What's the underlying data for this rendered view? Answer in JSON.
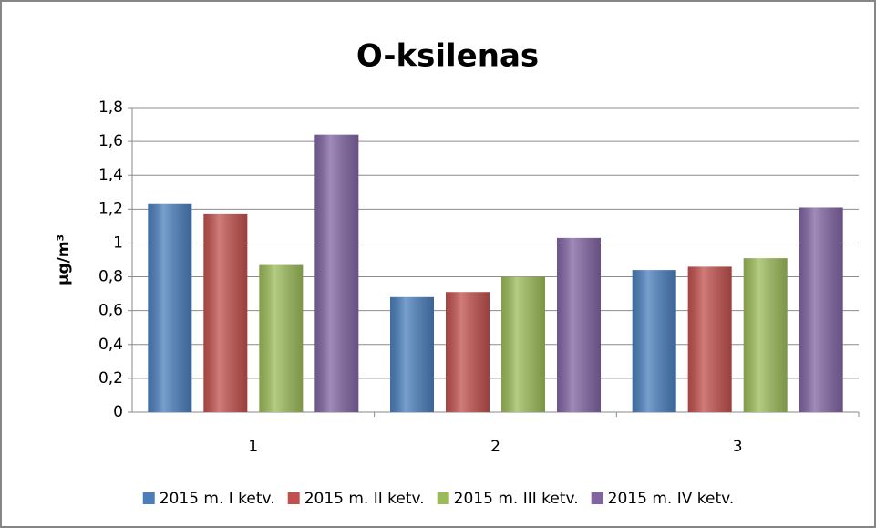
{
  "chart_data": {
    "type": "bar",
    "title": "O-ksilenas",
    "y_label": "µg/m³",
    "categories": [
      "1",
      "2",
      "3"
    ],
    "series": [
      {
        "name": "2015 m. I ketv.",
        "color": "#4a7ebb",
        "values": [
          1.23,
          0.68,
          0.84
        ]
      },
      {
        "name": "2015 m. II ketv.",
        "color": "#c0504d",
        "values": [
          1.17,
          0.71,
          0.86
        ]
      },
      {
        "name": "2015 m. III ketv.",
        "color": "#9bbb59",
        "values": [
          0.87,
          0.8,
          0.91
        ]
      },
      {
        "name": "2015 m. IV ketv.",
        "color": "#8064a2",
        "values": [
          1.64,
          1.03,
          1.21
        ]
      }
    ],
    "ylim": [
      0,
      1.8
    ],
    "yticks": [
      0,
      {
        "value": 0.2,
        "label": "0,2"
      },
      {
        "value": 0.4,
        "label": "0,4"
      },
      {
        "value": 0.6,
        "label": "0,6"
      },
      {
        "value": 0.8,
        "label": "0,8"
      },
      1,
      {
        "value": 1.2,
        "label": "1,2"
      },
      {
        "value": 1.4,
        "label": "1,4"
      },
      {
        "value": 1.6,
        "label": "1,6"
      },
      {
        "value": 1.8,
        "label": "1,8"
      }
    ],
    "grid": true,
    "legend": "bottom"
  }
}
